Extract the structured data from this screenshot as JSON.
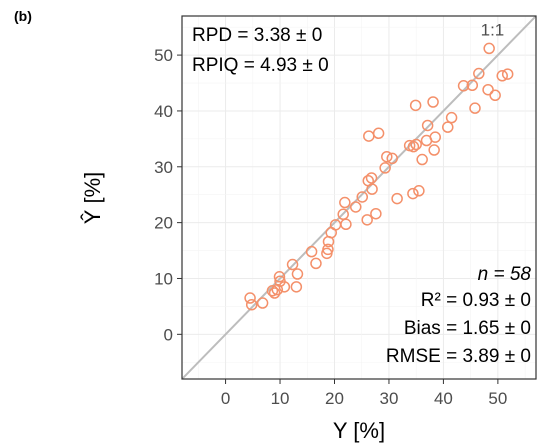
{
  "panel_label": "(b)",
  "chart_data": {
    "type": "scatter",
    "xlabel": "Y [%]",
    "ylabel": "Ŷ [%]",
    "xlim": [
      -8,
      57
    ],
    "ylim": [
      -8,
      57
    ],
    "x_ticks": [
      0,
      10,
      20,
      30,
      40,
      50
    ],
    "y_ticks": [
      0,
      10,
      20,
      30,
      40,
      50
    ],
    "grid": true,
    "reference_line": {
      "label": "1:1",
      "slope": 1,
      "intercept": 0,
      "color": "#bdbdbd"
    },
    "point_color": "#f4906a",
    "annotations": {
      "rpd": "RPD = 3.38 ± 0",
      "rpiq": "RPIQ = 4.93 ± 0",
      "n": "n = 58",
      "r2": "R² = 0.93 ± 0",
      "bias": "Bias = 1.65 ± 0",
      "rmse": "RMSE = 3.89 ± 0"
    },
    "points": [
      [
        4.5,
        6.5
      ],
      [
        4.8,
        5.3
      ],
      [
        6.8,
        5.6
      ],
      [
        8.6,
        7.8
      ],
      [
        9.0,
        7.4
      ],
      [
        9.5,
        8.0
      ],
      [
        9.9,
        10.3
      ],
      [
        10.0,
        9.5
      ],
      [
        10.8,
        8.5
      ],
      [
        12.3,
        12.5
      ],
      [
        13.0,
        8.5
      ],
      [
        13.2,
        10.8
      ],
      [
        15.8,
        14.8
      ],
      [
        16.6,
        12.7
      ],
      [
        18.6,
        14.5
      ],
      [
        18.8,
        15.2
      ],
      [
        18.9,
        16.6
      ],
      [
        19.4,
        18.2
      ],
      [
        20.2,
        19.6
      ],
      [
        21.6,
        21.5
      ],
      [
        21.9,
        23.6
      ],
      [
        22.1,
        19.7
      ],
      [
        23.9,
        22.8
      ],
      [
        25.1,
        24.6
      ],
      [
        26.0,
        20.5
      ],
      [
        26.2,
        27.5
      ],
      [
        26.3,
        35.5
      ],
      [
        26.8,
        28.0
      ],
      [
        26.9,
        26.0
      ],
      [
        27.6,
        21.6
      ],
      [
        28.1,
        36.0
      ],
      [
        29.3,
        29.8
      ],
      [
        29.6,
        31.8
      ],
      [
        30.6,
        31.5
      ],
      [
        31.5,
        24.3
      ],
      [
        33.8,
        33.8
      ],
      [
        34.4,
        25.2
      ],
      [
        34.5,
        33.6
      ],
      [
        34.9,
        41.0
      ],
      [
        35.0,
        34.0
      ],
      [
        35.5,
        25.7
      ],
      [
        36.1,
        31.3
      ],
      [
        36.9,
        34.7
      ],
      [
        37.1,
        37.4
      ],
      [
        38.1,
        41.6
      ],
      [
        38.3,
        33.0
      ],
      [
        38.5,
        35.3
      ],
      [
        40.8,
        37.1
      ],
      [
        41.5,
        38.8
      ],
      [
        43.7,
        44.5
      ],
      [
        45.8,
        40.5
      ],
      [
        46.5,
        46.7
      ],
      [
        48.2,
        43.8
      ],
      [
        48.4,
        51.2
      ],
      [
        49.5,
        42.8
      ],
      [
        50.8,
        46.3
      ],
      [
        51.8,
        46.6
      ],
      [
        45.3,
        44.6
      ]
    ]
  }
}
